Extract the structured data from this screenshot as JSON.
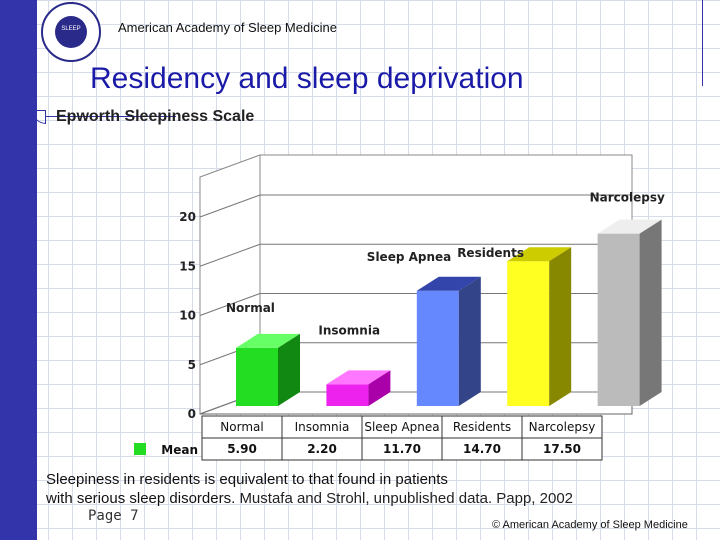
{
  "header": {
    "org_name": "American Academy of Sleep Medicine",
    "logo_text": "SLEEP"
  },
  "slide": {
    "title": "Residency and sleep deprivation",
    "subtitle": "Epworth Sleepiness Scale",
    "body_line1": "Sleepiness in residents is equivalent to that found in patients",
    "body_line2": "with serious sleep disorders.",
    "citation": "Mustafa and Strohl, unpublished data. Papp, 2002",
    "page": "Page 7",
    "copyright": "© American Academy of Sleep Medicine"
  },
  "colors": {
    "bar_faces": [
      "#22dd22",
      "#ee22ee",
      "#6688ff",
      "#ffff22",
      "#bbbbbb"
    ],
    "bar_tops": [
      "#66ff66",
      "#ff77ff",
      "#3344aa",
      "#cccc00",
      "#eeeeee"
    ],
    "bar_sides": [
      "#118811",
      "#aa00aa",
      "#334488",
      "#888800",
      "#777777"
    ],
    "legend_marker": "#22dd22"
  },
  "chart_data": {
    "type": "bar",
    "categories": [
      "Normal",
      "Insomnia",
      "Sleep Apnea",
      "Residents",
      "Narcolepsy"
    ],
    "values": [
      5.9,
      2.2,
      11.7,
      14.7,
      17.5
    ],
    "value_labels": [
      "5.90",
      "2.20",
      "11.70",
      "14.70",
      "17.50"
    ],
    "bar_labels": [
      "Normal",
      "Insomnia",
      "Sleep Apnea",
      "Residents",
      "Narcolepsy"
    ],
    "legend_label": "Mean",
    "yticks": [
      "0",
      "5",
      "10",
      "15",
      "20"
    ],
    "ytick_values": [
      0,
      5,
      10,
      15,
      20
    ],
    "ylim": [
      0,
      20
    ],
    "grid": true
  }
}
